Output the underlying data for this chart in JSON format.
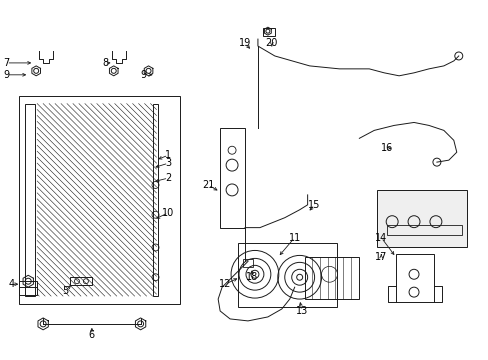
{
  "bg_color": "#ffffff",
  "line_color": "#1a1a1a",
  "fig_width": 4.89,
  "fig_height": 3.6,
  "dpi": 100,
  "label_fs": 7.0,
  "lw1": 0.7
}
